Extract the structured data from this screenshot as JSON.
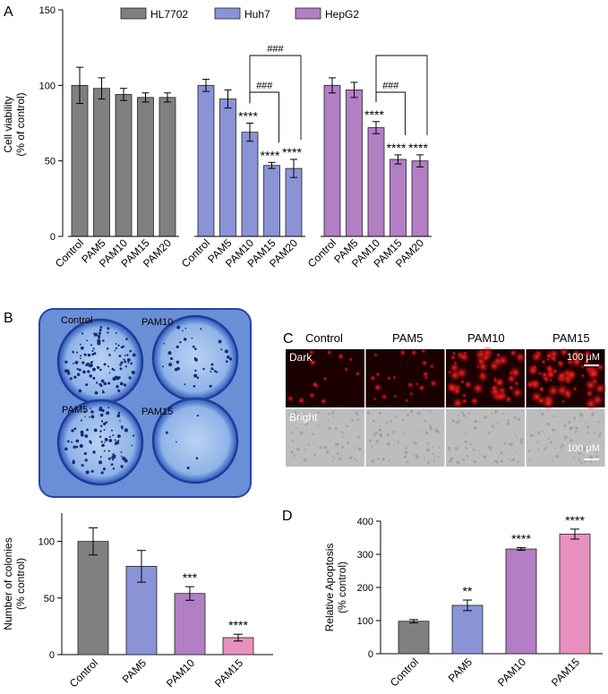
{
  "panels": {
    "a": "A",
    "b": "B",
    "c": "C",
    "d": "D"
  },
  "colors": {
    "HL7702": "#808080",
    "Huh7": "#8a93d6",
    "HepG2": "#b27ec4",
    "pink": "#e891be",
    "dish_bg": "#6a8fd6",
    "dark_bg": "#1a0000",
    "bright_bg": "#bdbdbd"
  },
  "chart_data": [
    {
      "id": "A",
      "type": "bar",
      "ylabel": "Cell viability\n(% of control)",
      "ylim": [
        0,
        150
      ],
      "yticks": [
        0,
        50,
        100,
        150
      ],
      "categories": [
        "Control",
        "PAM5",
        "PAM10",
        "PAM15",
        "PAM20"
      ],
      "legend": [
        "HL7702",
        "Huh7",
        "HepG2"
      ],
      "legend_position": "top",
      "series": [
        {
          "name": "HL7702",
          "values": [
            100,
            98,
            94,
            92,
            92
          ],
          "errors": [
            12,
            7,
            4,
            3,
            3
          ],
          "labels": [
            "",
            "",
            "",
            "",
            ""
          ]
        },
        {
          "name": "Huh7",
          "values": [
            100,
            91,
            69,
            47,
            45
          ],
          "errors": [
            4,
            6,
            6,
            2,
            6
          ],
          "labels": [
            "",
            "",
            "****",
            "****",
            "****"
          ]
        },
        {
          "name": "HepG2",
          "values": [
            100,
            97,
            72,
            51,
            50
          ],
          "errors": [
            5,
            5,
            4,
            3,
            4
          ],
          "labels": [
            "",
            "",
            "****",
            "****",
            "****"
          ]
        }
      ],
      "brackets": [
        {
          "series": "Huh7",
          "from": "PAM10",
          "to": "PAM15",
          "label": "###"
        },
        {
          "series": "Huh7",
          "from": "PAM10",
          "to": "PAM20",
          "label": "###"
        },
        {
          "series": "HepG2",
          "from": "PAM10",
          "to": "PAM15",
          "label": "###"
        },
        {
          "series": "HepG2",
          "from": "PAM10",
          "to": "PAM20",
          "label": ""
        }
      ]
    },
    {
      "id": "B",
      "type": "bar",
      "ylabel": "Number of colonies\n(% control)",
      "ylim": [
        0,
        125
      ],
      "yticks": [
        0,
        50,
        100
      ],
      "categories": [
        "Control",
        "PAM5",
        "PAM10",
        "PAM15"
      ],
      "values": [
        100,
        78,
        54,
        15
      ],
      "errors": [
        12,
        14,
        6,
        3
      ],
      "labels": [
        "",
        "",
        "***",
        "****"
      ]
    },
    {
      "id": "D",
      "type": "bar",
      "ylabel": "Relative Apoptosis\n(% control)",
      "ylim": [
        0,
        400
      ],
      "yticks": [
        0,
        100,
        200,
        300,
        400
      ],
      "categories": [
        "Control",
        "PAM5",
        "PAM10",
        "PAM15"
      ],
      "values": [
        98,
        146,
        316,
        361
      ],
      "errors": [
        5,
        16,
        4,
        15
      ],
      "labels": [
        "",
        "**",
        "****",
        "****"
      ]
    }
  ],
  "colony_image": {
    "labels": [
      "Control",
      "PAM10",
      "PAM5",
      "PAM15"
    ]
  },
  "fluorescence": {
    "columns": [
      "Control",
      "PAM5",
      "PAM10",
      "PAM15"
    ],
    "rows": [
      "Dark",
      "Bright"
    ],
    "scale_label": "100 μM",
    "scale_label_bottom": "100 μM"
  }
}
